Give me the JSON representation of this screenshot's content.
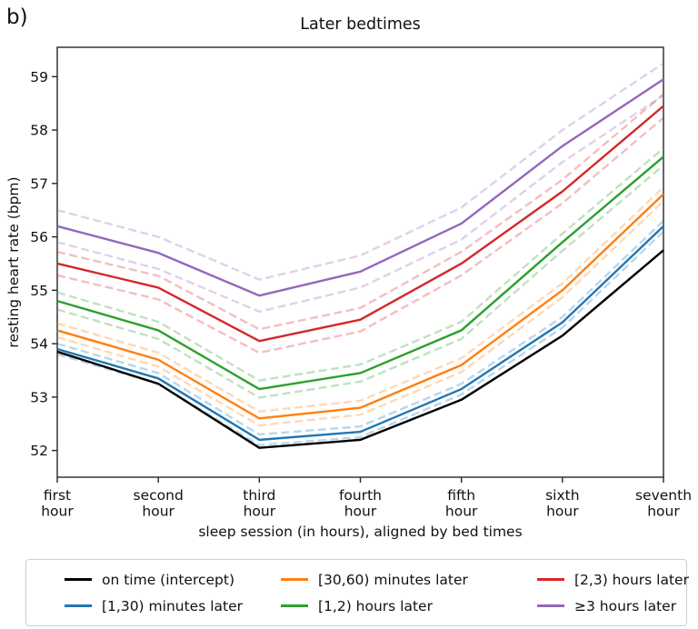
{
  "panel_label": "b)",
  "chart_data": {
    "type": "line",
    "title": "Later bedtimes",
    "xlabel": "sleep session (in hours), aligned by bed times",
    "ylabel": "resting heart rate (bpm)",
    "x_tick_labels": [
      [
        "first",
        "hour"
      ],
      [
        "second",
        "hour"
      ],
      [
        "third",
        "hour"
      ],
      [
        "fourth",
        "hour"
      ],
      [
        "fifth",
        "hour"
      ],
      [
        "sixth",
        "hour"
      ],
      [
        "seventh",
        "hour"
      ]
    ],
    "yticks": [
      52,
      53,
      54,
      55,
      56,
      57,
      58,
      59
    ],
    "ylim": [
      51.5,
      59.55
    ],
    "grid": false,
    "legend_position": "below, 3 columns, rounded box",
    "line_style_note": "each colored series has a solid mean line plus lighter dashed upper/lower confidence lines; black intercept has no dashed band",
    "series": [
      {
        "name": "on time (intercept)",
        "color": "#000000",
        "ci": 0,
        "values": [
          53.85,
          53.25,
          52.05,
          52.2,
          52.95,
          54.15,
          55.75
        ]
      },
      {
        "name": "[1,30) minutes later",
        "color": "#1f77b4",
        "ci": 0.1,
        "values": [
          53.9,
          53.35,
          52.2,
          52.35,
          53.15,
          54.4,
          56.2
        ]
      },
      {
        "name": "[30,60) minutes later",
        "color": "#ff7f0e",
        "ci": 0.13,
        "values": [
          54.25,
          53.7,
          52.6,
          52.8,
          53.6,
          55.0,
          56.8
        ]
      },
      {
        "name": "[1,2) hours later",
        "color": "#2ca02c",
        "ci": 0.16,
        "values": [
          54.8,
          54.25,
          53.15,
          53.45,
          54.25,
          55.9,
          57.5
        ]
      },
      {
        "name": "[2,3) hours later",
        "color": "#d62728",
        "ci": 0.22,
        "values": [
          55.5,
          55.05,
          54.05,
          54.45,
          55.5,
          56.85,
          58.45
        ]
      },
      {
        "name": "≥3 hours later",
        "color": "#9467bd",
        "ci": 0.3,
        "values": [
          56.2,
          55.7,
          54.9,
          55.35,
          56.25,
          57.7,
          58.95
        ]
      }
    ]
  }
}
